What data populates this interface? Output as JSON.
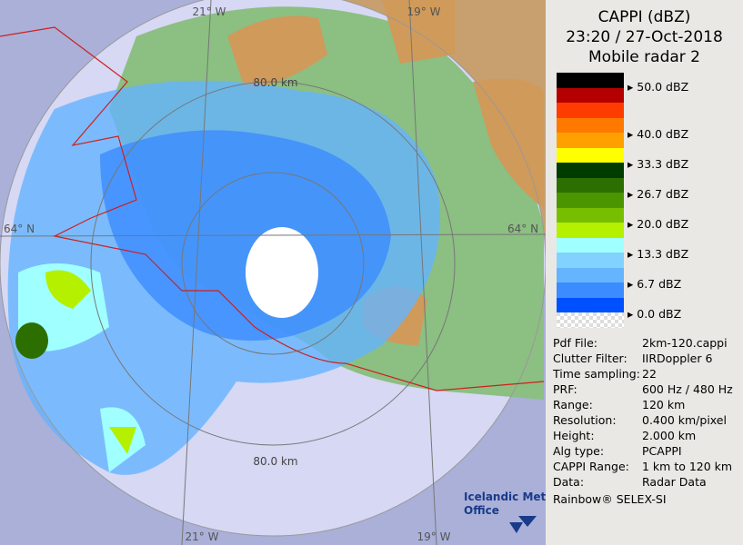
{
  "map": {
    "lon_labels_top": [
      "21° W",
      "19° W"
    ],
    "lon_labels_bottom": [
      "21° W",
      "19° W"
    ],
    "lat_labels": [
      "64° N",
      "64° N"
    ],
    "range_labels": [
      "80.0 km",
      "80.0 km"
    ],
    "logo": [
      "Icelandic Met",
      "Office"
    ]
  },
  "panel": {
    "title": [
      "CAPPI (dBZ)",
      "23:20 / 27-Oct-2018",
      "Mobile radar 2"
    ],
    "legend": {
      "colors": [
        "#000000",
        "#b40000",
        "#ff3c00",
        "#ff7800",
        "#ffa000",
        "#ffff00",
        "#003c00",
        "#2d6e00",
        "#4b9600",
        "#78be00",
        "#b4f000",
        "#a0ffff",
        "#82d2ff",
        "#64b4ff",
        "#3c8cff",
        "#0050ff",
        "#ffffff"
      ],
      "labels": [
        "50.0 dBZ",
        "40.0 dBZ",
        "33.3 dBZ",
        "26.7 dBZ",
        "20.0 dBZ",
        "13.3 dBZ",
        "6.7 dBZ",
        "0.0 dBZ"
      ]
    },
    "info": [
      [
        "Pdf File:",
        "2km-120.cappi"
      ],
      [
        "Clutter Filter:",
        "IIRDoppler 6"
      ],
      [
        "Time sampling:",
        "22"
      ],
      [
        "PRF:",
        "600 Hz / 480 Hz"
      ],
      [
        "Range:",
        "120 km"
      ],
      [
        "Resolution:",
        "0.400 km/pixel"
      ],
      [
        "Height:",
        "2.000 km"
      ],
      [
        "Alg type:",
        "PCAPPI"
      ],
      [
        "CAPPI Range:",
        "1 km to 120 km"
      ],
      [
        "Data:",
        "Radar Data"
      ]
    ],
    "footer": "Rainbow® SELEX-SI"
  }
}
